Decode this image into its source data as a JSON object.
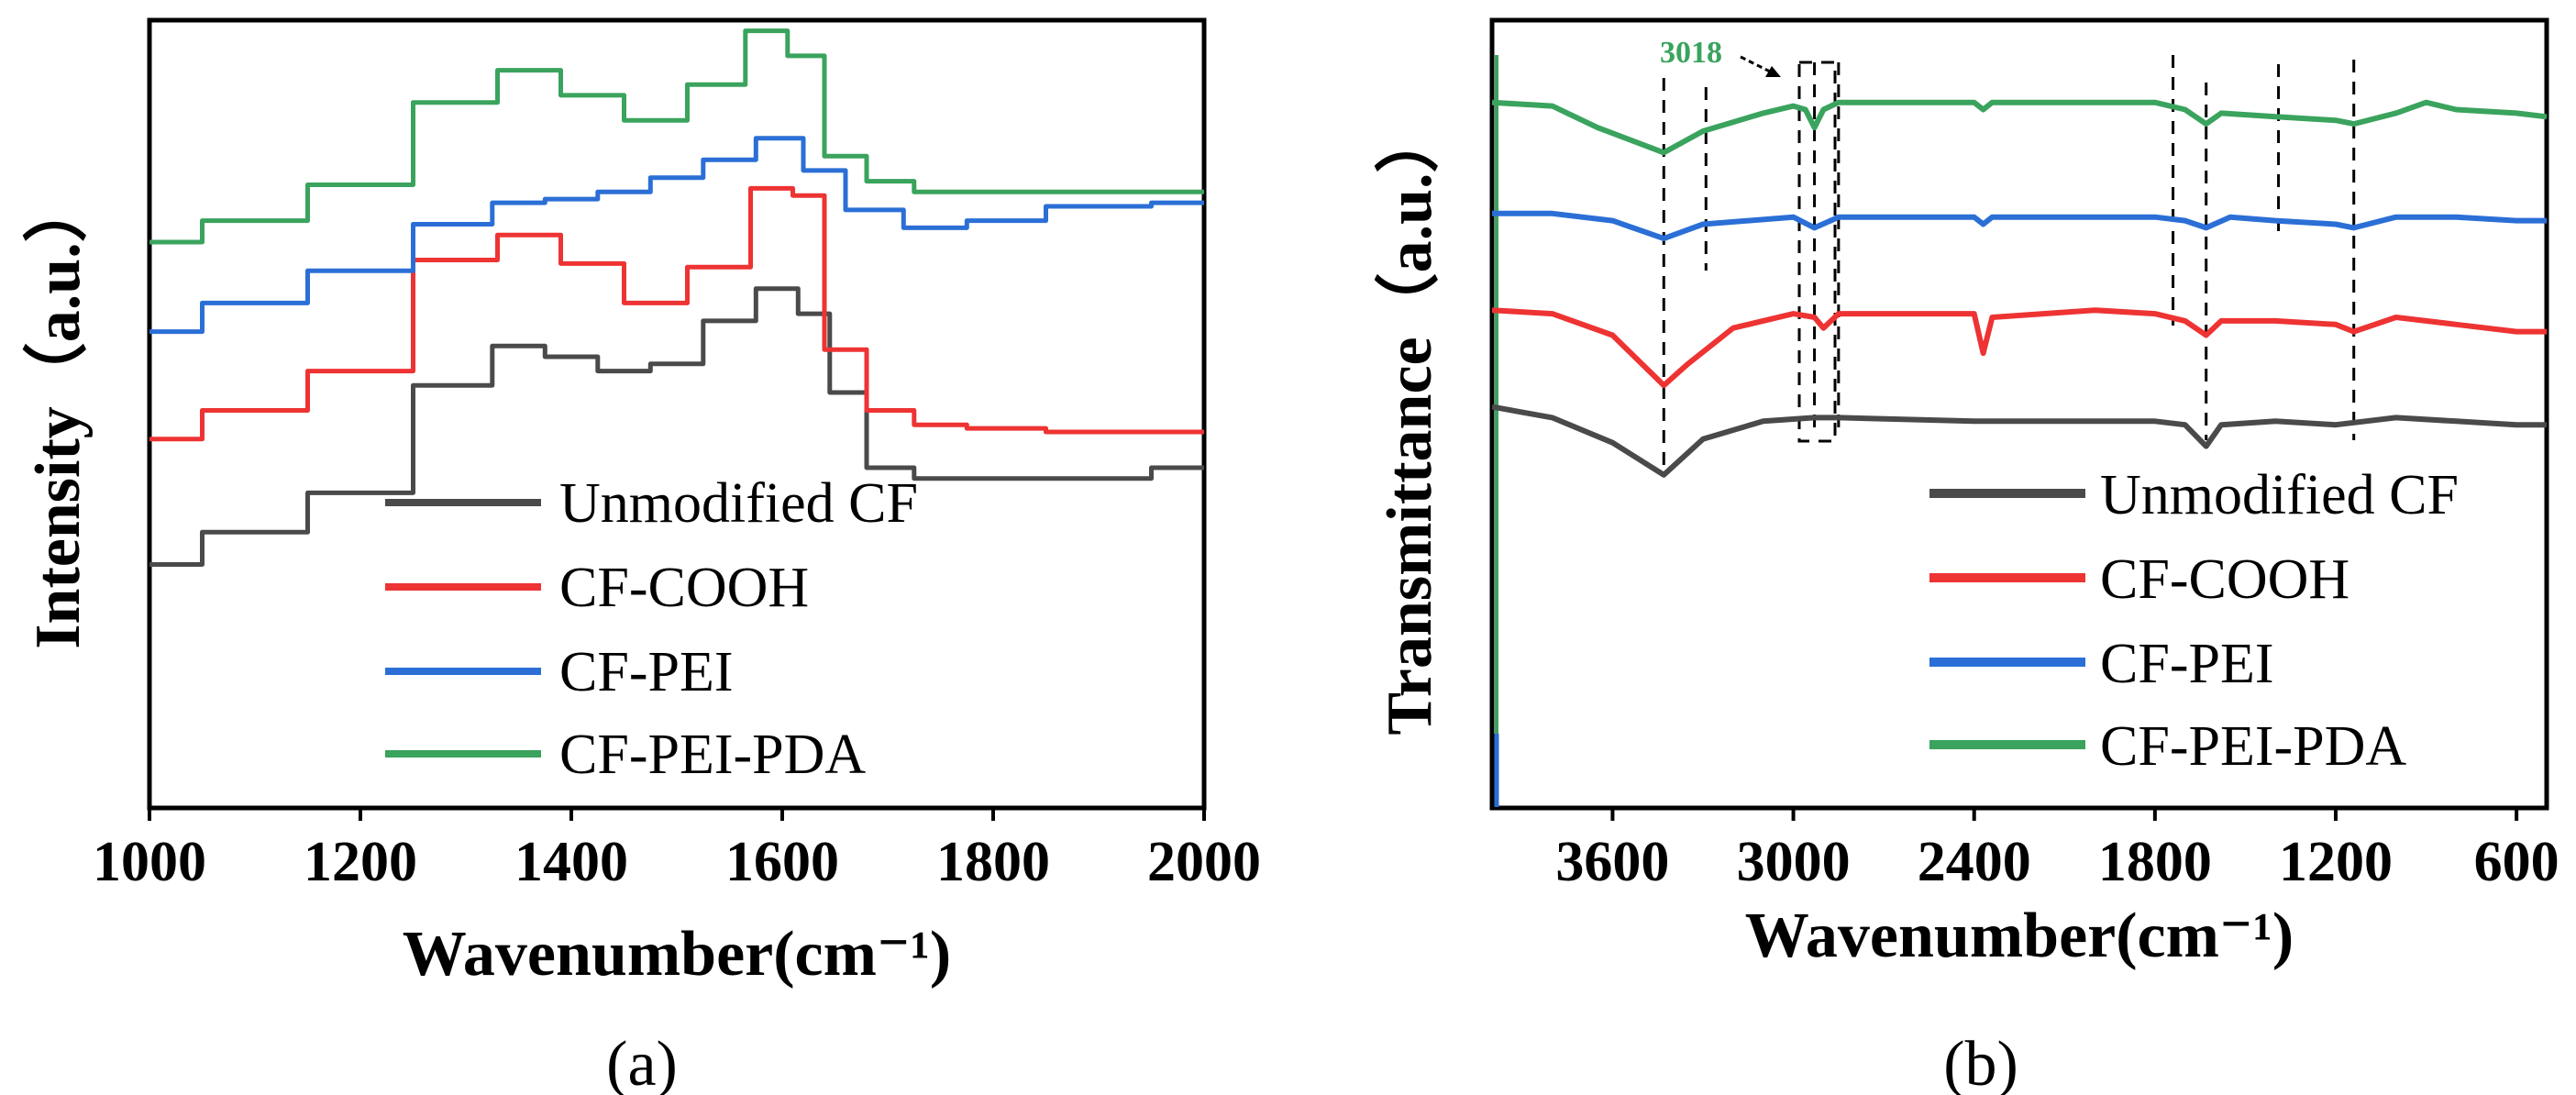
{
  "chart_data": [
    {
      "type": "line",
      "panel_label": "(a)",
      "xlabel": "Wavenumber(cm⁻¹)",
      "ylabel": "Intensity（a.u.）",
      "xlim": [
        1000,
        2000
      ],
      "ylim": [
        0,
        1
      ],
      "x_ticks": [
        1000,
        1200,
        1400,
        1600,
        1800,
        2000
      ],
      "legend": [
        "Unmodified CF",
        "CF-COOH",
        "CF-PEI",
        "CF-PEI-PDA"
      ],
      "legend_position": "bottom-right",
      "series": [
        {
          "name": "Unmodified CF",
          "color": "#4a4a4a",
          "points": [
            [
              1000,
              0.34
            ],
            [
              1100,
              0.385
            ],
            [
              1200,
              0.44
            ],
            [
              1300,
              0.59
            ],
            [
              1350,
              0.645
            ],
            [
              1400,
              0.63
            ],
            [
              1450,
              0.61
            ],
            [
              1500,
              0.62
            ],
            [
              1550,
              0.68
            ],
            [
              1600,
              0.725
            ],
            [
              1630,
              0.69
            ],
            [
              1660,
              0.58
            ],
            [
              1700,
              0.475
            ],
            [
              1750,
              0.46
            ],
            [
              1800,
              0.46
            ],
            [
              1900,
              0.46
            ],
            [
              2000,
              0.475
            ]
          ]
        },
        {
          "name": "CF-COOH",
          "color": "#ee3333",
          "points": [
            [
              1000,
              0.515
            ],
            [
              1100,
              0.555
            ],
            [
              1200,
              0.61
            ],
            [
              1300,
              0.765
            ],
            [
              1360,
              0.8
            ],
            [
              1420,
              0.76
            ],
            [
              1480,
              0.705
            ],
            [
              1540,
              0.755
            ],
            [
              1600,
              0.865
            ],
            [
              1620,
              0.855
            ],
            [
              1660,
              0.64
            ],
            [
              1700,
              0.555
            ],
            [
              1750,
              0.535
            ],
            [
              1800,
              0.53
            ],
            [
              1900,
              0.525
            ],
            [
              2000,
              0.525
            ]
          ]
        },
        {
          "name": "CF-PEI",
          "color": "#2b6fd6",
          "points": [
            [
              1000,
              0.665
            ],
            [
              1100,
              0.705
            ],
            [
              1200,
              0.75
            ],
            [
              1300,
              0.815
            ],
            [
              1350,
              0.845
            ],
            [
              1400,
              0.85
            ],
            [
              1450,
              0.86
            ],
            [
              1500,
              0.88
            ],
            [
              1550,
              0.905
            ],
            [
              1600,
              0.935
            ],
            [
              1640,
              0.89
            ],
            [
              1680,
              0.835
            ],
            [
              1750,
              0.81
            ],
            [
              1800,
              0.82
            ],
            [
              1900,
              0.84
            ],
            [
              2000,
              0.845
            ]
          ]
        },
        {
          "name": "CF-PEI-PDA",
          "color": "#3aa35d",
          "points": [
            [
              1000,
              0.79
            ],
            [
              1100,
              0.82
            ],
            [
              1200,
              0.87
            ],
            [
              1300,
              0.985
            ],
            [
              1360,
              1.03
            ],
            [
              1420,
              0.995
            ],
            [
              1480,
              0.96
            ],
            [
              1540,
              1.01
            ],
            [
              1590,
              1.085
            ],
            [
              1620,
              1.05
            ],
            [
              1660,
              0.91
            ],
            [
              1700,
              0.875
            ],
            [
              1750,
              0.86
            ],
            [
              1800,
              0.86
            ],
            [
              1900,
              0.86
            ],
            [
              2000,
              0.86
            ]
          ]
        }
      ]
    },
    {
      "type": "line",
      "panel_label": "(b)",
      "xlabel": "Wavenumber(cm⁻¹)",
      "ylabel": "Transmittance（a.u.）",
      "xlim": [
        4000,
        500
      ],
      "ylim": [
        0,
        1
      ],
      "x_ticks": [
        3600,
        3000,
        2400,
        1800,
        1200,
        600
      ],
      "annotation": "3018",
      "dashed_lines": [
        3430,
        3290,
        2930,
        2850,
        1740,
        1630,
        1390,
        1140
      ],
      "legend": [
        "Unmodified CF",
        "CF-COOH",
        "CF-PEI",
        "CF-PEI-PDA"
      ],
      "legend_position": "bottom-right",
      "series": [
        {
          "name": "Unmodified CF",
          "color": "#4a4a4a",
          "points": [
            [
              4000,
              0.56
            ],
            [
              3800,
              0.545
            ],
            [
              3600,
              0.51
            ],
            [
              3430,
              0.465
            ],
            [
              3300,
              0.515
            ],
            [
              3100,
              0.54
            ],
            [
              2930,
              0.545
            ],
            [
              2850,
              0.545
            ],
            [
              2400,
              0.54
            ],
            [
              2100,
              0.54
            ],
            [
              1800,
              0.54
            ],
            [
              1700,
              0.535
            ],
            [
              1630,
              0.505
            ],
            [
              1580,
              0.535
            ],
            [
              1400,
              0.54
            ],
            [
              1200,
              0.535
            ],
            [
              1000,
              0.545
            ],
            [
              800,
              0.54
            ],
            [
              600,
              0.535
            ],
            [
              500,
              0.535
            ]
          ]
        },
        {
          "name": "CF-COOH",
          "color": "#ee3333",
          "points": [
            [
              4000,
              0.695
            ],
            [
              3800,
              0.69
            ],
            [
              3600,
              0.66
            ],
            [
              3430,
              0.59
            ],
            [
              3350,
              0.62
            ],
            [
              3200,
              0.67
            ],
            [
              3000,
              0.69
            ],
            [
              2930,
              0.685
            ],
            [
              2900,
              0.67
            ],
            [
              2850,
              0.69
            ],
            [
              2500,
              0.69
            ],
            [
              2400,
              0.69
            ],
            [
              2370,
              0.635
            ],
            [
              2340,
              0.685
            ],
            [
              2000,
              0.695
            ],
            [
              1800,
              0.69
            ],
            [
              1700,
              0.68
            ],
            [
              1630,
              0.66
            ],
            [
              1580,
              0.68
            ],
            [
              1400,
              0.68
            ],
            [
              1200,
              0.675
            ],
            [
              1140,
              0.665
            ],
            [
              1000,
              0.685
            ],
            [
              800,
              0.675
            ],
            [
              600,
              0.665
            ],
            [
              500,
              0.665
            ]
          ]
        },
        {
          "name": "CF-PEI",
          "color": "#2b6fd6",
          "points": [
            [
              4000,
              0.83
            ],
            [
              3800,
              0.83
            ],
            [
              3600,
              0.82
            ],
            [
              3430,
              0.795
            ],
            [
              3300,
              0.815
            ],
            [
              3000,
              0.825
            ],
            [
              2930,
              0.81
            ],
            [
              2850,
              0.825
            ],
            [
              2400,
              0.825
            ],
            [
              2370,
              0.815
            ],
            [
              2340,
              0.825
            ],
            [
              1800,
              0.825
            ],
            [
              1700,
              0.82
            ],
            [
              1630,
              0.81
            ],
            [
              1550,
              0.825
            ],
            [
              1400,
              0.82
            ],
            [
              1200,
              0.815
            ],
            [
              1140,
              0.81
            ],
            [
              1000,
              0.825
            ],
            [
              800,
              0.825
            ],
            [
              600,
              0.82
            ],
            [
              500,
              0.82
            ]
          ]
        },
        {
          "name": "CF-PEI-PDA",
          "color": "#3aa35d",
          "points": [
            [
              4000,
              0.985
            ],
            [
              3800,
              0.98
            ],
            [
              3650,
              0.95
            ],
            [
              3430,
              0.915
            ],
            [
              3300,
              0.945
            ],
            [
              3100,
              0.97
            ],
            [
              3000,
              0.98
            ],
            [
              2960,
              0.975
            ],
            [
              2930,
              0.95
            ],
            [
              2900,
              0.975
            ],
            [
              2850,
              0.985
            ],
            [
              2400,
              0.985
            ],
            [
              2370,
              0.975
            ],
            [
              2340,
              0.985
            ],
            [
              1800,
              0.985
            ],
            [
              1700,
              0.975
            ],
            [
              1630,
              0.955
            ],
            [
              1580,
              0.97
            ],
            [
              1400,
              0.965
            ],
            [
              1200,
              0.96
            ],
            [
              1140,
              0.955
            ],
            [
              1000,
              0.97
            ],
            [
              900,
              0.985
            ],
            [
              800,
              0.975
            ],
            [
              600,
              0.97
            ],
            [
              500,
              0.965
            ]
          ]
        }
      ]
    }
  ]
}
